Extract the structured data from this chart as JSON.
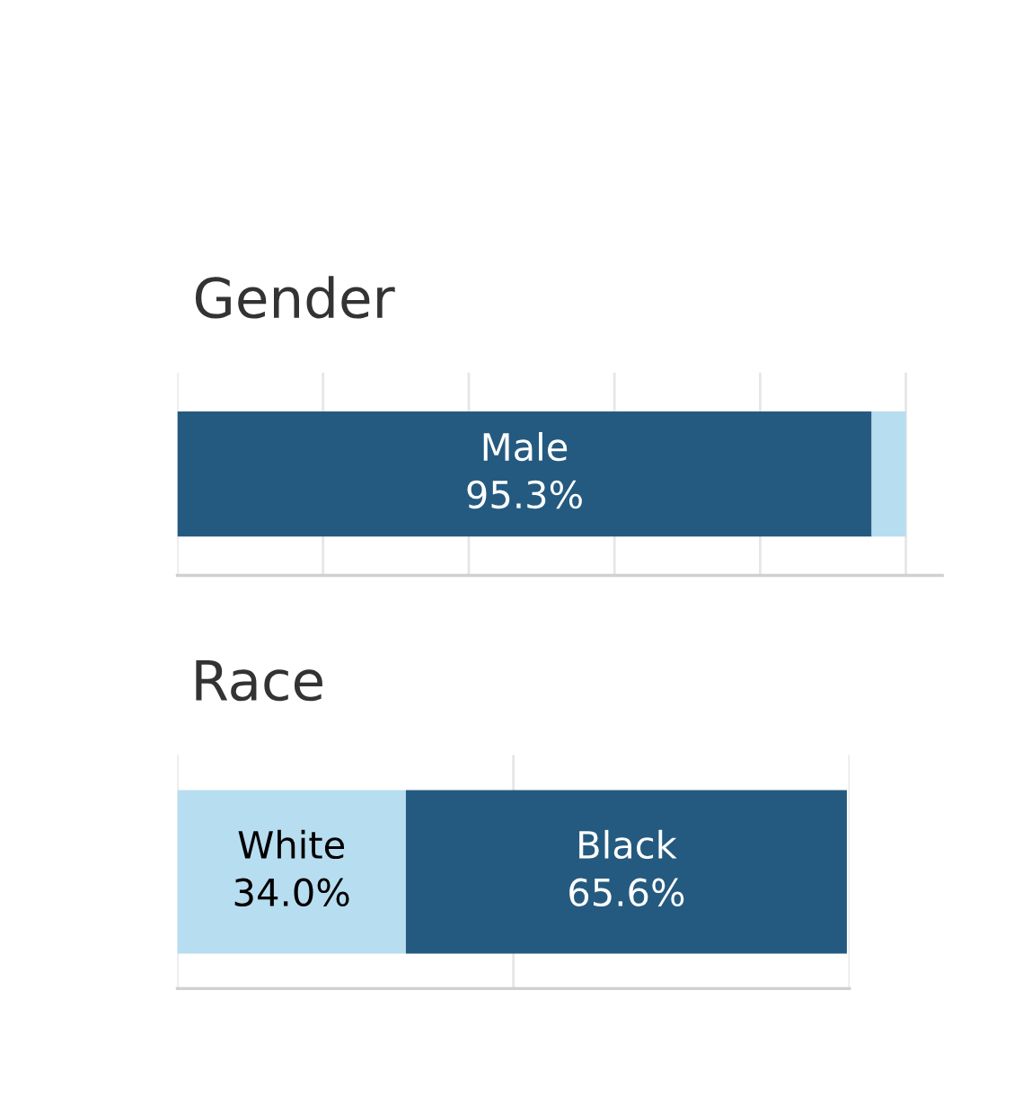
{
  "chart_data": [
    {
      "type": "bar",
      "title": "Gender",
      "orientation": "horizontal",
      "stacked": true,
      "categories": [
        null
      ],
      "xlim": [
        0,
        105
      ],
      "xticks": [
        {
          "value": 0,
          "label": null
        },
        {
          "value": 20,
          "label": null
        },
        {
          "value": 40,
          "label": null
        },
        {
          "value": 60,
          "label": null
        },
        {
          "value": 80,
          "label": null
        },
        {
          "value": 100,
          "label": null
        }
      ],
      "grid": "x",
      "series": [
        {
          "name": "Male",
          "color": "#245a80",
          "values": [
            95.3
          ],
          "value_labels": [
            "95.3%"
          ]
        },
        {
          "color": "#b7ddf0",
          "values": [
            4.7
          ],
          "value_labels": [
            null
          ]
        }
      ]
    },
    {
      "type": "bar",
      "title": "Race",
      "orientation": "horizontal",
      "stacked": true,
      "categories": [
        null
      ],
      "xlim": [
        0,
        100
      ],
      "xticks": [
        {
          "value": 0,
          "label": null
        },
        {
          "value": 50,
          "label": null
        },
        {
          "value": 100,
          "label": null
        }
      ],
      "grid": "x",
      "series": [
        {
          "name": "White",
          "color": "#b7ddf0",
          "values": [
            34.0
          ],
          "value_labels": [
            "34.0%"
          ]
        },
        {
          "name": "Black",
          "color": "#245a80",
          "values": [
            65.6
          ],
          "value_labels": [
            "65.6%"
          ]
        }
      ]
    }
  ]
}
